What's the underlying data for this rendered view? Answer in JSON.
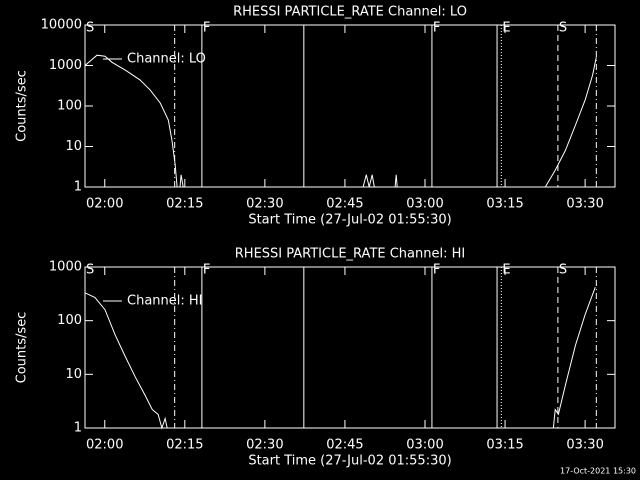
{
  "chart_data": [
    {
      "type": "line",
      "title": "RHESSI PARTICLE_RATE Channel: LO",
      "x_label": "Start Time (27-Jul-02 01:55:30)",
      "y_label": "Counts/sec",
      "log_y": true,
      "ylim": [
        1,
        10000
      ],
      "yticks": [
        1,
        10,
        100,
        1000,
        10000
      ],
      "xlim": [
        0.8,
        100.1
      ],
      "xticks": [
        {
          "value": 4.5,
          "label": "02:00"
        },
        {
          "value": 19.5,
          "label": "02:15"
        },
        {
          "value": 34.5,
          "label": "02:30"
        },
        {
          "value": 49.5,
          "label": "02:45"
        },
        {
          "value": 64.5,
          "label": "03:00"
        },
        {
          "value": 79.5,
          "label": "03:15"
        },
        {
          "value": 94.5,
          "label": "03:30"
        }
      ],
      "legend_position": "upper left",
      "series": [
        {
          "name": "Channel: LO",
          "color": "#ffffff",
          "x": [
            0.8,
            3.05,
            4.55,
            5.86,
            8.3,
            11.1,
            13.0,
            14.9,
            16.4,
            17.1,
            17.7,
            18.05,
            null,
            18.6,
            18.8,
            19.2,
            null,
            52.9,
            53.5,
            54.05,
            54.6,
            55.0,
            null,
            58.9,
            59.1,
            59.3,
            null,
            87.05,
            88.9,
            90.8,
            92.7,
            94.5,
            95.9,
            96.6
          ],
          "values": [
            1000,
            1800,
            1700,
            1200,
            780,
            440,
            250,
            118,
            45,
            14,
            3.5,
            1,
            null,
            1,
            2,
            1,
            null,
            1,
            2,
            1,
            2,
            1,
            null,
            1,
            2,
            1,
            null,
            1,
            2.6,
            8,
            34,
            140,
            580,
            1600
          ]
        }
      ],
      "event_lines": [
        {
          "x": 17.6,
          "style": "dashdot"
        },
        {
          "x": 22.7,
          "style": "solid"
        },
        {
          "x": 41.8,
          "style": "solid"
        },
        {
          "x": 65.8,
          "style": "solid"
        },
        {
          "x": 78.0,
          "style": "solid"
        },
        {
          "x": 78.8,
          "style": "dotted"
        },
        {
          "x": 89.4,
          "style": "dashed"
        },
        {
          "x": 96.6,
          "style": "dashdot"
        }
      ],
      "event_labels": [
        {
          "x": 0.8,
          "label": "S"
        },
        {
          "x": 22.7,
          "label": "F"
        },
        {
          "x": 65.8,
          "label": "F"
        },
        {
          "x": 78.8,
          "label": "E"
        },
        {
          "x": 89.4,
          "label": "S"
        }
      ]
    },
    {
      "type": "line",
      "title": "RHESSI PARTICLE_RATE Channel: HI",
      "x_label": "Start Time (27-Jul-02 01:55:30)",
      "y_label": "Counts/sec",
      "log_y": true,
      "ylim": [
        1,
        1000
      ],
      "yticks": [
        1,
        10,
        100,
        1000
      ],
      "xlim": [
        0.8,
        100.1
      ],
      "xticks": [
        {
          "value": 4.5,
          "label": "02:00"
        },
        {
          "value": 19.5,
          "label": "02:15"
        },
        {
          "value": 34.5,
          "label": "02:30"
        },
        {
          "value": 49.5,
          "label": "02:45"
        },
        {
          "value": 64.5,
          "label": "03:00"
        },
        {
          "value": 79.5,
          "label": "03:15"
        },
        {
          "value": 94.5,
          "label": "03:30"
        }
      ],
      "legend_position": "upper left",
      "series": [
        {
          "name": "Channel: HI",
          "color": "#ffffff",
          "x": [
            0.8,
            2.68,
            4.55,
            6.43,
            8.3,
            10.2,
            12.05,
            13.4,
            14.5,
            15.2,
            15.8,
            16.2,
            null,
            88.55,
            88.9,
            89.5,
            90.8,
            92.7,
            94.5,
            96.4
          ],
          "values": [
            330,
            270,
            160,
            55,
            22,
            9,
            4.1,
            2.2,
            1.8,
            1,
            1.5,
            1,
            null,
            1,
            2.2,
            1.8,
            6.3,
            35,
            130,
            420
          ]
        }
      ],
      "event_lines": [
        {
          "x": 17.6,
          "style": "dashdot"
        },
        {
          "x": 22.7,
          "style": "solid"
        },
        {
          "x": 41.8,
          "style": "solid"
        },
        {
          "x": 65.8,
          "style": "solid"
        },
        {
          "x": 78.0,
          "style": "solid"
        },
        {
          "x": 78.8,
          "style": "dotted"
        },
        {
          "x": 89.4,
          "style": "dashed"
        },
        {
          "x": 96.6,
          "style": "dashdot"
        }
      ],
      "event_labels": [
        {
          "x": 0.8,
          "label": "S"
        },
        {
          "x": 22.7,
          "label": "F"
        },
        {
          "x": 65.8,
          "label": "F"
        },
        {
          "x": 78.8,
          "label": "E"
        },
        {
          "x": 89.4,
          "label": "S"
        }
      ]
    }
  ],
  "footer": "17-Oct-2021 15:30"
}
